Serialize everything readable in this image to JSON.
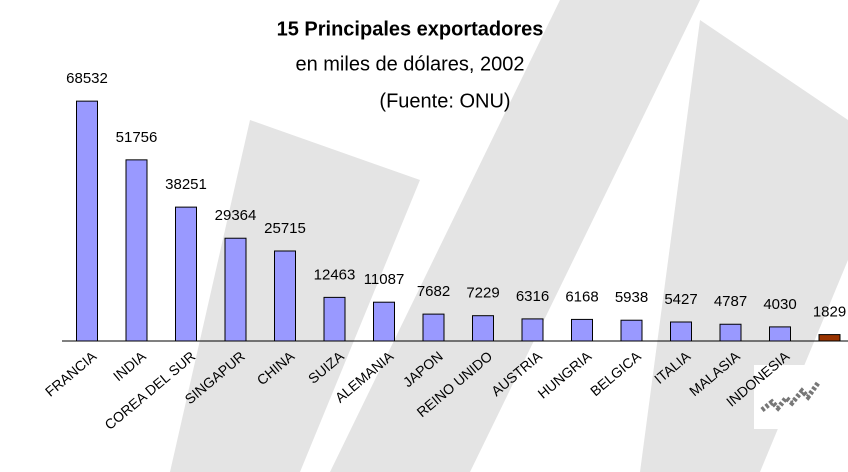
{
  "chart_data": {
    "type": "bar",
    "title": "15 Principales exportadores",
    "subtitle": "en miles de dólares, 2002",
    "source": "(Fuente: ONU)",
    "categories": [
      "FRANCIA",
      "INDIA",
      "COREA DEL SUR",
      "SINGAPUR",
      "CHINA",
      "SUIZA",
      "ALEMANIA",
      "JAPON",
      "REINO UNIDO",
      "AUSTRIA",
      "HUNGRIA",
      "BELGICA",
      "ITALIA",
      "MALASIA",
      "INDONESIA",
      null
    ],
    "values": [
      68532,
      51756,
      38251,
      29364,
      25715,
      12463,
      11087,
      7682,
      7229,
      6316,
      6168,
      5938,
      5427,
      4787,
      4030,
      1829
    ],
    "colors": [
      "#9999ff",
      "#9999ff",
      "#9999ff",
      "#9999ff",
      "#9999ff",
      "#9999ff",
      "#9999ff",
      "#9999ff",
      "#9999ff",
      "#9999ff",
      "#9999ff",
      "#9999ff",
      "#9999ff",
      "#9999ff",
      "#9999ff",
      "#993300"
    ],
    "ylim": [
      0,
      70000
    ]
  }
}
